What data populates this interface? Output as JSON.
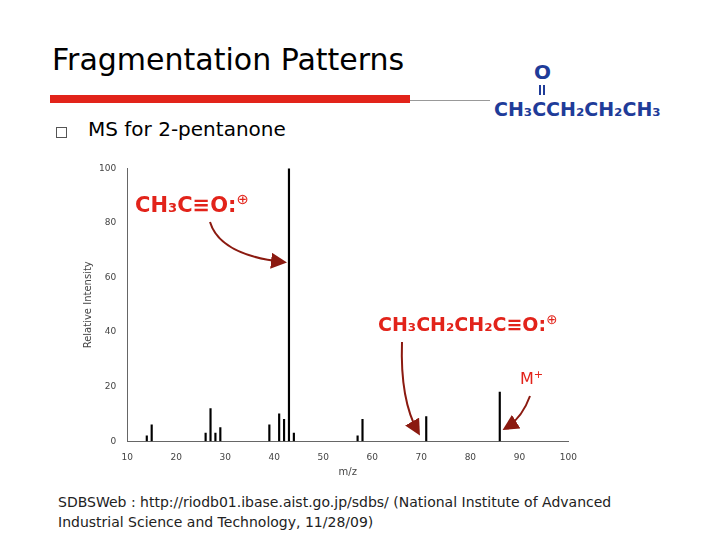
{
  "header": {
    "title": "Fragmentation Patterns",
    "bullet": "MS for 2-pentanone"
  },
  "structure": {
    "top": "O",
    "formula": "CH₃CCH₂CH₂CH₃"
  },
  "chart_data": {
    "type": "bar",
    "x_label": "m/z",
    "y_label": "Relative Intensity",
    "x": [
      14,
      15,
      26,
      27,
      28,
      29,
      39,
      41,
      42,
      43,
      44,
      57,
      58,
      71,
      86
    ],
    "values": [
      2,
      6,
      3,
      12,
      3,
      5,
      6,
      10,
      8,
      100,
      3,
      2,
      8,
      9,
      18
    ],
    "color": "#000000",
    "xlim": [
      10,
      100
    ],
    "xticks": [
      10,
      20,
      30,
      40,
      50,
      60,
      70,
      80,
      90,
      100
    ],
    "ylim": [
      0,
      100
    ],
    "yticks": [
      0,
      20,
      40,
      60,
      80,
      100
    ],
    "grid": false,
    "annotations": [
      {
        "text": "CH₃C≡O:",
        "charge": "⊕"
      },
      {
        "text": "CH₃CH₂CH₂C≡O:",
        "charge": "⊕"
      },
      {
        "text": "M",
        "charge": "+"
      }
    ]
  },
  "source": "SDBSWeb : http://riodb01.ibase.aist.go.jp/sdbs/ (National Institute of Advanced Industrial Science and Technology, 11/28/09)"
}
